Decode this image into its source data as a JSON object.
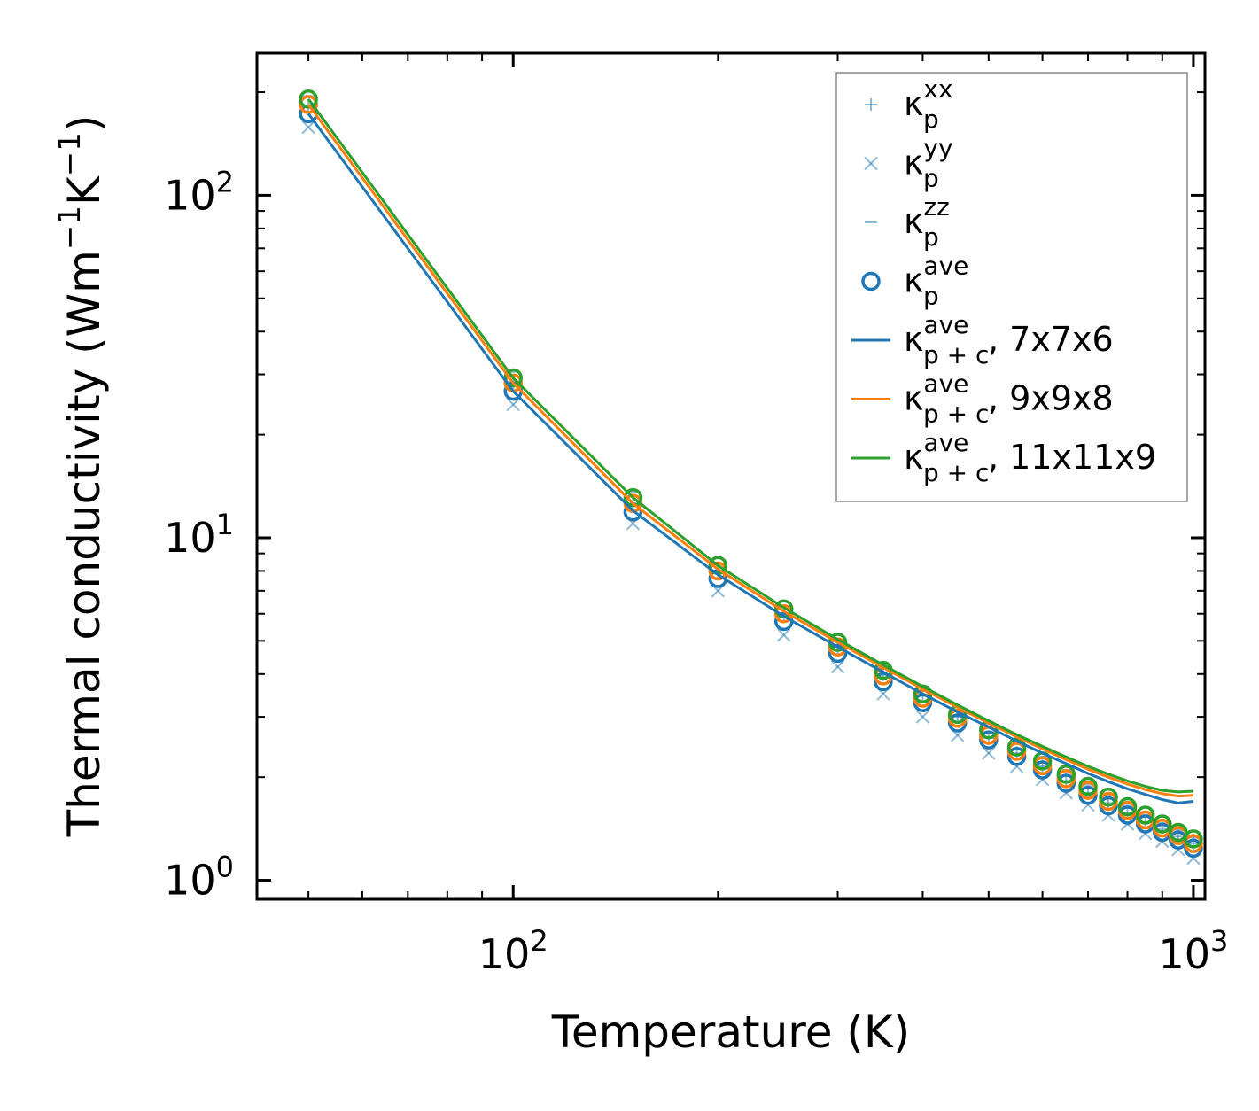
{
  "chart_data": {
    "type": "scatter",
    "x_scale": "log",
    "y_scale": "log",
    "xlabel": "Temperature (K)",
    "ylabel": {
      "prefix": "Thermal conductivity (Wm",
      "sup1": "−1",
      "mid": "K",
      "sup2": "−1",
      "suffix": ")"
    },
    "xlim": [
      42,
      1040
    ],
    "ylim": [
      0.88,
      260
    ],
    "x_ticks": [
      {
        "base": "10",
        "exp": "2",
        "value": 100
      },
      {
        "base": "10",
        "exp": "3",
        "value": 1000
      }
    ],
    "y_ticks": [
      {
        "base": "10",
        "exp": "0",
        "value": 1
      },
      {
        "base": "10",
        "exp": "1",
        "value": 10
      },
      {
        "base": "10",
        "exp": "2",
        "value": 100
      }
    ],
    "temperatures": [
      50,
      100,
      150,
      200,
      250,
      300,
      350,
      400,
      450,
      500,
      550,
      600,
      650,
      700,
      750,
      800,
      850,
      900,
      950,
      1000
    ],
    "scatter_series": [
      {
        "name": "κp xx",
        "marker": "plus",
        "color": "#1f77b4",
        "values": [
          182,
          28.5,
          12.5,
          8.0,
          6.0,
          4.8,
          4.0,
          3.45,
          3.0,
          2.6,
          2.35,
          2.15,
          1.95,
          1.8,
          1.68,
          1.57,
          1.48,
          1.41,
          1.34,
          1.28
        ]
      },
      {
        "name": "κp yy",
        "marker": "x",
        "color": "#1f77b4",
        "values": [
          158,
          24.5,
          11.0,
          7.0,
          5.2,
          4.2,
          3.5,
          3.0,
          2.65,
          2.35,
          2.15,
          1.97,
          1.8,
          1.66,
          1.55,
          1.46,
          1.37,
          1.3,
          1.23,
          1.16
        ]
      },
      {
        "name": "κp zz",
        "marker": "hline",
        "color": "#1f77b4",
        "values": [
          195,
          30.5,
          13.6,
          8.4,
          6.3,
          5.0,
          4.2,
          3.65,
          3.15,
          2.85,
          2.5,
          2.3,
          2.1,
          1.9,
          1.77,
          1.65,
          1.55,
          1.47,
          1.4,
          1.33
        ]
      },
      {
        "name": "κp ave (7x7x6)",
        "marker": "circle",
        "color": "#1f77b4",
        "values": [
          173,
          26.8,
          11.9,
          7.6,
          5.7,
          4.6,
          3.8,
          3.3,
          2.88,
          2.57,
          2.3,
          2.1,
          1.92,
          1.77,
          1.65,
          1.55,
          1.46,
          1.38,
          1.31,
          1.24
        ]
      },
      {
        "name": "κp ave (9x9x8)",
        "marker": "circle",
        "color": "#ff7f0e",
        "values": [
          184,
          28.3,
          12.6,
          8.0,
          6.0,
          4.8,
          3.95,
          3.4,
          2.97,
          2.65,
          2.38,
          2.16,
          1.98,
          1.83,
          1.7,
          1.6,
          1.5,
          1.42,
          1.35,
          1.28
        ]
      },
      {
        "name": "κp ave (11x11x9)",
        "marker": "circle",
        "color": "#2ca02c",
        "values": [
          191,
          29.3,
          13.1,
          8.3,
          6.2,
          4.95,
          4.1,
          3.5,
          3.05,
          2.75,
          2.45,
          2.23,
          2.04,
          1.88,
          1.75,
          1.64,
          1.55,
          1.46,
          1.38,
          1.32
        ]
      }
    ],
    "line_series": [
      {
        "name": "κp+c ave, 7x7x6",
        "color": "#1f77b4",
        "values": [
          173,
          26.8,
          12.0,
          7.8,
          5.9,
          4.8,
          4.05,
          3.5,
          3.1,
          2.8,
          2.55,
          2.35,
          2.19,
          2.05,
          1.94,
          1.85,
          1.78,
          1.72,
          1.68,
          1.7
        ]
      },
      {
        "name": "κp+c ave, 9x9x8",
        "color": "#ff7f0e",
        "values": [
          184,
          28.3,
          12.6,
          8.1,
          6.1,
          4.95,
          4.18,
          3.62,
          3.2,
          2.88,
          2.62,
          2.42,
          2.25,
          2.11,
          2.0,
          1.91,
          1.84,
          1.79,
          1.76,
          1.77
        ]
      },
      {
        "name": "κp+c ave, 11x11x9",
        "color": "#2ca02c",
        "values": [
          191,
          29.3,
          13.1,
          8.3,
          6.25,
          5.05,
          4.25,
          3.68,
          3.25,
          2.92,
          2.66,
          2.46,
          2.29,
          2.15,
          2.04,
          1.95,
          1.88,
          1.83,
          1.81,
          1.82
        ]
      }
    ],
    "legend": {
      "placement": "top-right",
      "entries": [
        {
          "marker": "plus",
          "color": "#1f77b4",
          "base": "κ",
          "sup": "xx",
          "sub": "p",
          "suffix": ""
        },
        {
          "marker": "x",
          "color": "#1f77b4",
          "base": "κ",
          "sup": "yy",
          "sub": "p",
          "suffix": ""
        },
        {
          "marker": "hline",
          "color": "#1f77b4",
          "base": "κ",
          "sup": "zz",
          "sub": "p",
          "suffix": ""
        },
        {
          "marker": "circle",
          "color": "#1f77b4",
          "base": "κ",
          "sup": "ave",
          "sub": "p",
          "suffix": ""
        },
        {
          "marker": "line",
          "color": "#1f77b4",
          "base": "κ",
          "sup": "ave",
          "sub": "p + c",
          "suffix": ", 7x7x6"
        },
        {
          "marker": "line",
          "color": "#ff7f0e",
          "base": "κ",
          "sup": "ave",
          "sub": "p + c",
          "suffix": ", 9x9x8"
        },
        {
          "marker": "line",
          "color": "#2ca02c",
          "base": "κ",
          "sup": "ave",
          "sub": "p + c",
          "suffix": ", 11x11x9"
        }
      ]
    }
  }
}
